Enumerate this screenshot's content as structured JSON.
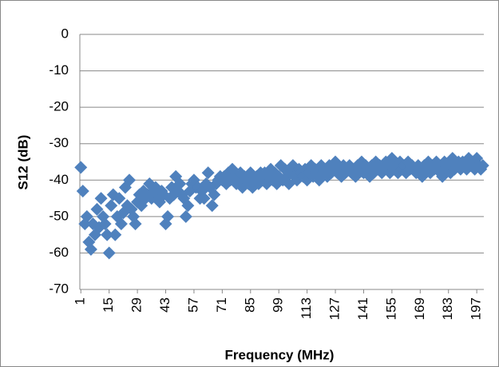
{
  "chart_data": {
    "type": "line",
    "markers_only": true,
    "x_label": "Frequency (MHz)",
    "y_label": "S12 (dB)",
    "categories": [
      1,
      null,
      null,
      null,
      null,
      null,
      null,
      null,
      null,
      null,
      null,
      null,
      null,
      null,
      15,
      null,
      null,
      null,
      null,
      null,
      null,
      null,
      null,
      null,
      null,
      null,
      null,
      null,
      29,
      null,
      null,
      null,
      null,
      null,
      null,
      null,
      null,
      null,
      null,
      null,
      null,
      null,
      43,
      null,
      null,
      null,
      null,
      null,
      null,
      null,
      null,
      null,
      null,
      null,
      null,
      null,
      57,
      null,
      null,
      null,
      null,
      null,
      null,
      null,
      null,
      null,
      null,
      null,
      null,
      null,
      71,
      null,
      null,
      null,
      null,
      null,
      null,
      null,
      null,
      null,
      null,
      null,
      null,
      null,
      85,
      null,
      null,
      null,
      null,
      null,
      null,
      null,
      null,
      null,
      null,
      null,
      null,
      null,
      99,
      null,
      null,
      null,
      null,
      null,
      null,
      null,
      null,
      null,
      null,
      null,
      null,
      null,
      113,
      null,
      null,
      null,
      null,
      null,
      null,
      null,
      null,
      null,
      null,
      null,
      null,
      null,
      127,
      null,
      null,
      null,
      null,
      null,
      null,
      null,
      null,
      null,
      null,
      null,
      null,
      null,
      141,
      null,
      null,
      null,
      null,
      null,
      null,
      null,
      null,
      null,
      null,
      null,
      null,
      null,
      155,
      null,
      null,
      null,
      null,
      null,
      null,
      null,
      null,
      null,
      null,
      null,
      null,
      null,
      169,
      null,
      null,
      null,
      null,
      null,
      null,
      null,
      null,
      null,
      null,
      null,
      null,
      null,
      183,
      null,
      null,
      null,
      null,
      null,
      null,
      null,
      null,
      null,
      null,
      null,
      null,
      null,
      197,
      null,
      null,
      null
    ],
    "values": [
      -36.5,
      -43,
      -52,
      -50,
      -57,
      -59,
      -52,
      -55,
      -48,
      -53,
      -45,
      -50,
      -52,
      -55,
      -60,
      -47,
      -44,
      -55,
      -50,
      -45,
      -52,
      -49,
      -42,
      -47,
      -40,
      -48,
      -50,
      -52,
      -46,
      -44,
      -47,
      -43,
      -45,
      -44,
      -41,
      -45,
      -43,
      -42,
      -44,
      -46,
      -43,
      -44,
      -52,
      -50,
      -45,
      -42,
      -44,
      -39,
      -43,
      -41,
      -44,
      -45,
      -50,
      -47,
      -43,
      -41,
      -40,
      -42,
      -42,
      -45,
      -43,
      -45,
      -41,
      -38,
      -42,
      -47,
      -44,
      -41,
      -40,
      -39,
      -40,
      -39,
      -41,
      -38,
      -40,
      -37,
      -39,
      -41,
      -40,
      -38,
      -42,
      -39,
      -40,
      -41,
      -38,
      -42,
      -40,
      -39,
      -41,
      -38,
      -40,
      -38,
      -41,
      -39,
      -37,
      -40,
      -38,
      -41,
      -39,
      -36,
      -40,
      -37,
      -39,
      -41,
      -38,
      -36,
      -39,
      -40,
      -37,
      -38,
      -39,
      -37,
      -40,
      -38,
      -36,
      -39,
      -37,
      -38,
      -40,
      -36,
      -38,
      -37,
      -39,
      -36,
      -38,
      -37,
      -35,
      -38,
      -37,
      -39,
      -36,
      -38,
      -37,
      -36,
      -38,
      -37,
      -39,
      -36,
      -37,
      -35,
      -38,
      -36,
      -37,
      -39,
      -36,
      -38,
      -35,
      -37,
      -36,
      -38,
      -37,
      -35,
      -36,
      -38,
      -34,
      -37,
      -36,
      -38,
      -35,
      -37,
      -36,
      -38,
      -35,
      -37,
      -36,
      -37,
      -38,
      -36,
      -37,
      -39,
      -36,
      -37,
      -35,
      -38,
      -36,
      -37,
      -35,
      -36,
      -38,
      -39,
      -35,
      -37,
      -36,
      -38,
      -34,
      -37,
      -36,
      -35,
      -37,
      -35,
      -36,
      -37,
      -34,
      -36,
      -35,
      -37,
      -34,
      -36,
      -37,
      -36
    ],
    "color": "#4f81bd",
    "ylim": [
      -70,
      0
    ],
    "yticks": [
      0,
      -10,
      -20,
      -30,
      -40,
      -50,
      -60,
      -70
    ],
    "grid": true
  }
}
